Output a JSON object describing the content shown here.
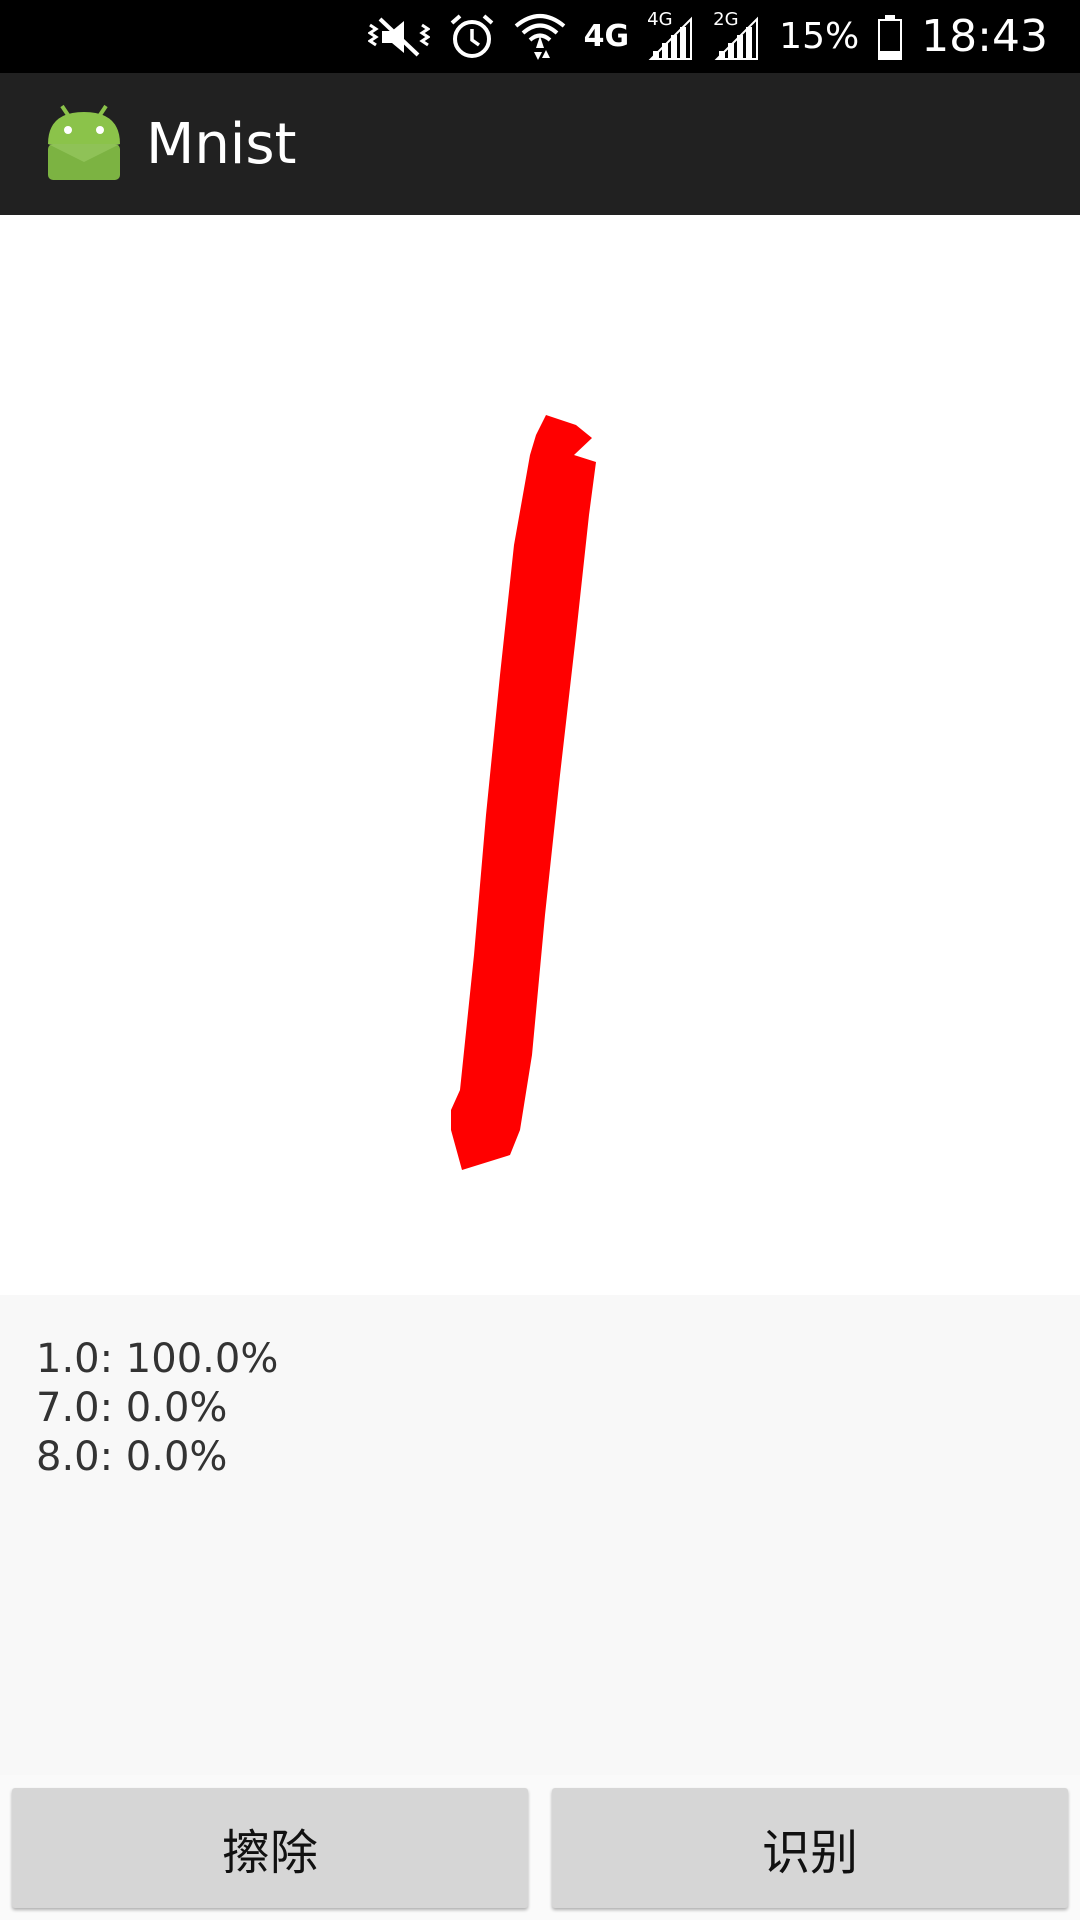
{
  "status_bar": {
    "network_4g": "4G",
    "signal1_label": "4G",
    "signal2_label": "2G",
    "battery": "15%",
    "time": "18:43",
    "icons": [
      "mute-vibrate-icon",
      "alarm-icon",
      "wifi-icon",
      "signal-icon",
      "signal-icon",
      "battery-icon"
    ]
  },
  "app_bar": {
    "title": "Mnist",
    "icon": "android-icon"
  },
  "canvas": {
    "stroke_color": "#ff0000"
  },
  "results": [
    "1.0: 100.0%",
    "7.0: 0.0%",
    "8.0: 0.0%"
  ],
  "buttons": {
    "erase": "擦除",
    "recognize": "识别"
  },
  "colors": {
    "app_bar": "#212121",
    "status_bar": "#000000",
    "stroke": "#ff0000",
    "android_green": "#8bc34a"
  }
}
